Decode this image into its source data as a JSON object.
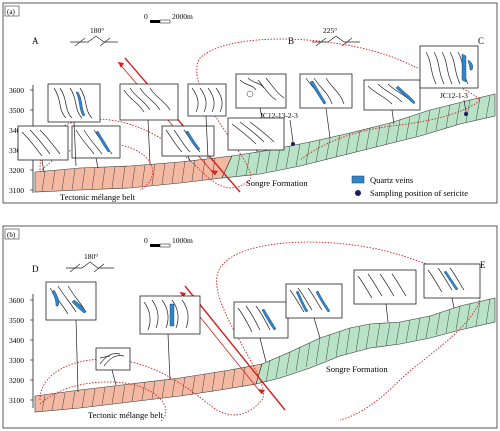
{
  "panels": [
    {
      "tag": "(a)",
      "scale_zero": "0",
      "scale_length": "2000m",
      "azimuth_left": "180°",
      "azimuth_right": "225°",
      "ends": [
        "A",
        "B",
        "C"
      ],
      "y_ticks": [
        "3600",
        "3500",
        "3400",
        "3300",
        "3200",
        "3100"
      ],
      "melange_label": "Tectonic mélange belt",
      "formation_label": "Songre Formation",
      "samples": [
        "JC12-13-2-3",
        "JC12-1-3"
      ],
      "legend": {
        "veins": "Quartz veins",
        "sericite": "Sampling position of sericite"
      }
    },
    {
      "tag": "(b)",
      "scale_zero": "0",
      "scale_length": "1000m",
      "azimuth_left": "180°",
      "ends": [
        "D",
        "E"
      ],
      "y_ticks": [
        "3600",
        "3500",
        "3400",
        "3300",
        "3200",
        "3100"
      ],
      "melange_label": "Tectonic mélange belt",
      "formation_label": "Songre Formation"
    }
  ],
  "colors": {
    "melange": "#f3b9a3",
    "formation": "#b9e3c6",
    "vein": "#2e86c9",
    "fault": "#d62020",
    "fold_trace": "#d62020",
    "sericite": "#1c1c5e"
  }
}
